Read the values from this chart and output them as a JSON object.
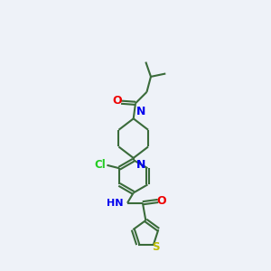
{
  "background_color": "#eef2f8",
  "bond_color": "#3a6b3a",
  "N_color": "#0000ee",
  "O_color": "#ee0000",
  "S_color": "#bbbb00",
  "Cl_color": "#22cc22",
  "lw": 1.5,
  "figsize": [
    3.0,
    3.0
  ],
  "dpi": 100,
  "xlim": [
    -3.5,
    3.5
  ],
  "ylim": [
    -5.5,
    7.5
  ]
}
